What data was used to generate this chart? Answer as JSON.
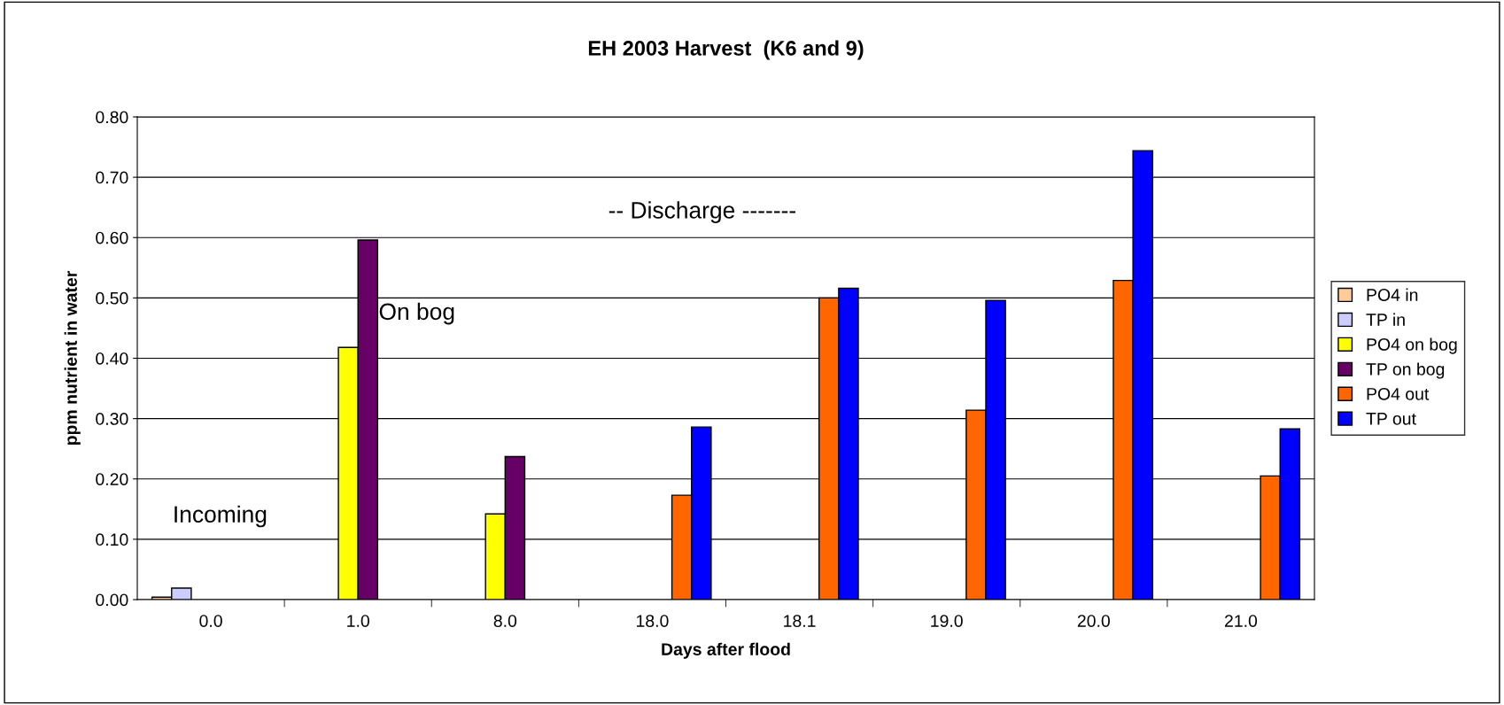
{
  "chart_data": {
    "type": "bar",
    "title": "EH 2003 Harvest  (K6 and 9)",
    "xlabel": "Days after flood",
    "ylabel": "ppm nutrient in water",
    "categories": [
      "0.0",
      "1.0",
      "8.0",
      "18.0",
      "18.1",
      "19.0",
      "20.0",
      "21.0"
    ],
    "series": [
      {
        "name": "PO4 in",
        "color": "#ffcc99",
        "values": [
          0.004,
          null,
          null,
          null,
          null,
          null,
          null,
          null
        ]
      },
      {
        "name": "TP in",
        "color": "#ccccff",
        "values": [
          0.019,
          null,
          null,
          null,
          null,
          null,
          null,
          null
        ]
      },
      {
        "name": "PO4 on bog",
        "color": "#ffff00",
        "values": [
          null,
          0.418,
          0.142,
          null,
          null,
          null,
          null,
          null
        ]
      },
      {
        "name": "TP on bog",
        "color": "#660066",
        "values": [
          null,
          0.596,
          0.237,
          null,
          null,
          null,
          null,
          null
        ]
      },
      {
        "name": "PO4 out",
        "color": "#ff6600",
        "values": [
          null,
          null,
          null,
          0.173,
          0.5,
          0.314,
          0.529,
          0.205
        ]
      },
      {
        "name": "TP out",
        "color": "#0000ff",
        "values": [
          null,
          null,
          null,
          0.286,
          0.516,
          0.496,
          0.744,
          0.283
        ]
      }
    ],
    "ylim": [
      0,
      0.8
    ],
    "yticks": [
      {
        "value": 0,
        "label": "0.00"
      },
      {
        "value": 0.1,
        "label": "0.10"
      },
      {
        "value": 0.2,
        "label": "0.20"
      },
      {
        "value": 0.3,
        "label": "0.30"
      },
      {
        "value": 0.4,
        "label": "0.40"
      },
      {
        "value": 0.5,
        "label": "0.50"
      },
      {
        "value": 0.6,
        "label": "0.60"
      },
      {
        "value": 0.7,
        "label": "0.70"
      },
      {
        "value": 0.8,
        "label": "0.80"
      }
    ],
    "grid": "y",
    "legend": "right",
    "annotations": [
      "Incoming",
      "On bog",
      "-- Discharge -------"
    ]
  }
}
